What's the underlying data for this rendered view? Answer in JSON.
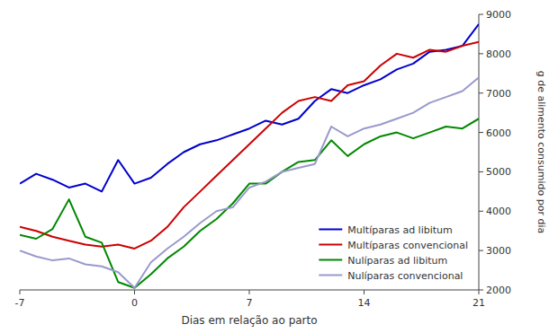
{
  "chart_data": {
    "type": "line",
    "xlabel": "Dias em relação ao parto",
    "ylabel": "g de alimento consumido por dia",
    "x": [
      -7,
      -6,
      -5,
      -4,
      -3,
      -2,
      -1,
      0,
      1,
      2,
      3,
      4,
      5,
      6,
      7,
      8,
      9,
      10,
      11,
      12,
      13,
      14,
      15,
      16,
      17,
      18,
      19,
      20,
      21
    ],
    "series": [
      {
        "name": "Multíparas ad libitum",
        "color": "#0000cc",
        "values": [
          4700,
          4950,
          4800,
          4600,
          4700,
          4500,
          5300,
          4700,
          4850,
          5200,
          5500,
          5700,
          5800,
          5950,
          6100,
          6300,
          6200,
          6350,
          6800,
          7100,
          7000,
          7200,
          7350,
          7600,
          7750,
          8050,
          8100,
          8200,
          8750
        ]
      },
      {
        "name": "Multíparas convencional",
        "color": "#cc0000",
        "values": [
          3600,
          3500,
          3350,
          3250,
          3150,
          3100,
          3150,
          3050,
          3250,
          3600,
          4100,
          4500,
          4900,
          5300,
          5700,
          6100,
          6500,
          6800,
          6900,
          6800,
          7200,
          7300,
          7700,
          8000,
          7900,
          8100,
          8050,
          8200,
          8300
        ]
      },
      {
        "name": "Nulíparas ad libitum",
        "color": "#008800",
        "values": [
          3400,
          3300,
          3550,
          4300,
          3350,
          3200,
          2200,
          2050,
          2400,
          2800,
          3100,
          3500,
          3800,
          4200,
          4700,
          4700,
          5000,
          5250,
          5300,
          5800,
          5400,
          5700,
          5900,
          6000,
          5850,
          6000,
          6150,
          6100,
          6350
        ]
      },
      {
        "name": "Nulíparas convencional",
        "color": "#9999cc",
        "values": [
          3000,
          2850,
          2750,
          2800,
          2650,
          2600,
          2450,
          2050,
          2700,
          3050,
          3350,
          3700,
          4000,
          4100,
          4600,
          4750,
          5000,
          5100,
          5200,
          6150,
          5900,
          6100,
          6200,
          6350,
          6500,
          6750,
          6900,
          7050,
          7400
        ]
      }
    ],
    "xlim": [
      -7,
      21
    ],
    "ylim": [
      2000,
      9000
    ],
    "xticks": [
      -7,
      0,
      7,
      14,
      21
    ],
    "yticks": [
      2000,
      3000,
      4000,
      5000,
      6000,
      7000,
      8000,
      9000
    ],
    "grid": false,
    "legend": "lower right"
  }
}
